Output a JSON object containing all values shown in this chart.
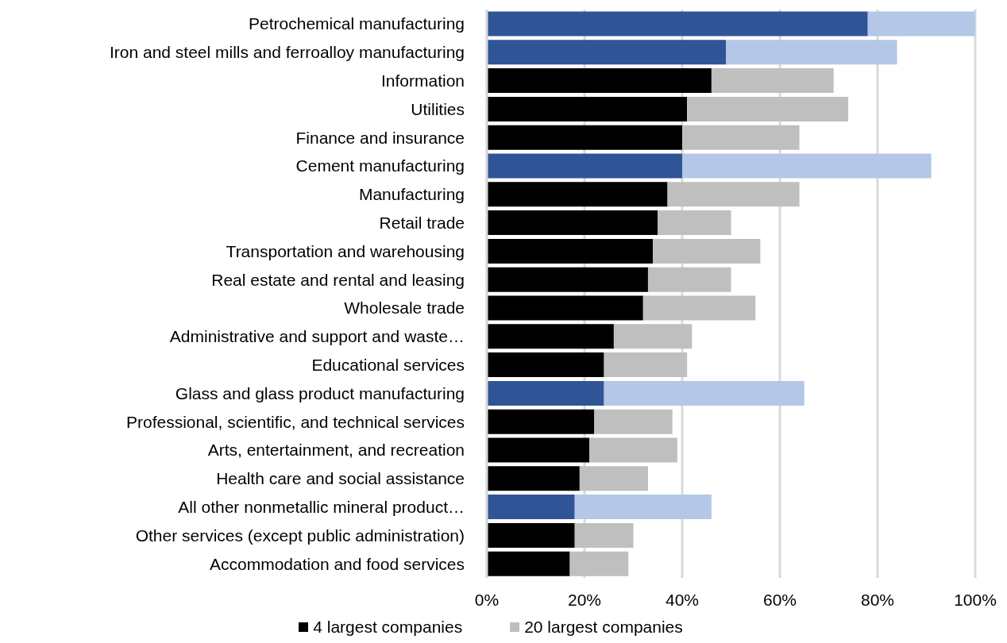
{
  "chart_data": {
    "type": "bar",
    "orientation": "horizontal",
    "stacked": true,
    "categories": [
      "Petrochemical manufacturing",
      "Iron and steel mills and ferroalloy manufacturing",
      "Information",
      "Utilities",
      "Finance and insurance",
      "Cement manufacturing",
      "Manufacturing",
      "Retail trade",
      "Transportation and warehousing",
      "Real estate and rental and leasing",
      "Wholesale trade",
      "Administrative and support and waste…",
      "Educational services",
      "Glass and glass product manufacturing",
      "Professional, scientific, and technical services",
      "Arts, entertainment, and recreation",
      "Health care and social assistance",
      "All other nonmetallic mineral product…",
      "Other services (except public administration)",
      "Accommodation and food services"
    ],
    "series": [
      {
        "name": "4 largest companies",
        "color": "#000000",
        "colors": [
          "#2f5597",
          "#2f5597",
          "#000000",
          "#000000",
          "#000000",
          "#2f5597",
          "#000000",
          "#000000",
          "#000000",
          "#000000",
          "#000000",
          "#000000",
          "#000000",
          "#2f5597",
          "#000000",
          "#000000",
          "#000000",
          "#2f5597",
          "#000000",
          "#000000"
        ],
        "values": [
          78,
          49,
          46,
          41,
          40,
          40,
          37,
          35,
          34,
          33,
          32,
          26,
          24,
          24,
          22,
          21,
          19,
          18,
          18,
          17
        ]
      },
      {
        "name": "20 largest companies",
        "color": "#bfbfbf",
        "colors": [
          "#b4c7e7",
          "#b4c7e7",
          "#bfbfbf",
          "#bfbfbf",
          "#bfbfbf",
          "#b4c7e7",
          "#bfbfbf",
          "#bfbfbf",
          "#bfbfbf",
          "#bfbfbf",
          "#bfbfbf",
          "#bfbfbf",
          "#bfbfbf",
          "#b4c7e7",
          "#bfbfbf",
          "#bfbfbf",
          "#bfbfbf",
          "#b4c7e7",
          "#bfbfbf",
          "#bfbfbf"
        ],
        "values": [
          22,
          35,
          25,
          33,
          24,
          51,
          27,
          15,
          22,
          17,
          23,
          16,
          17,
          41,
          16,
          18,
          14,
          28,
          12,
          12
        ]
      }
    ],
    "xlim": [
      0,
      100
    ],
    "xticks": [
      {
        "value": 0,
        "label": "0%"
      },
      {
        "value": 20,
        "label": "20%"
      },
      {
        "value": 40,
        "label": "40%"
      },
      {
        "value": 60,
        "label": "60%"
      },
      {
        "value": 80,
        "label": "80%"
      },
      {
        "value": 100,
        "label": "100%"
      }
    ],
    "grid": "x",
    "legend": "bottom"
  }
}
